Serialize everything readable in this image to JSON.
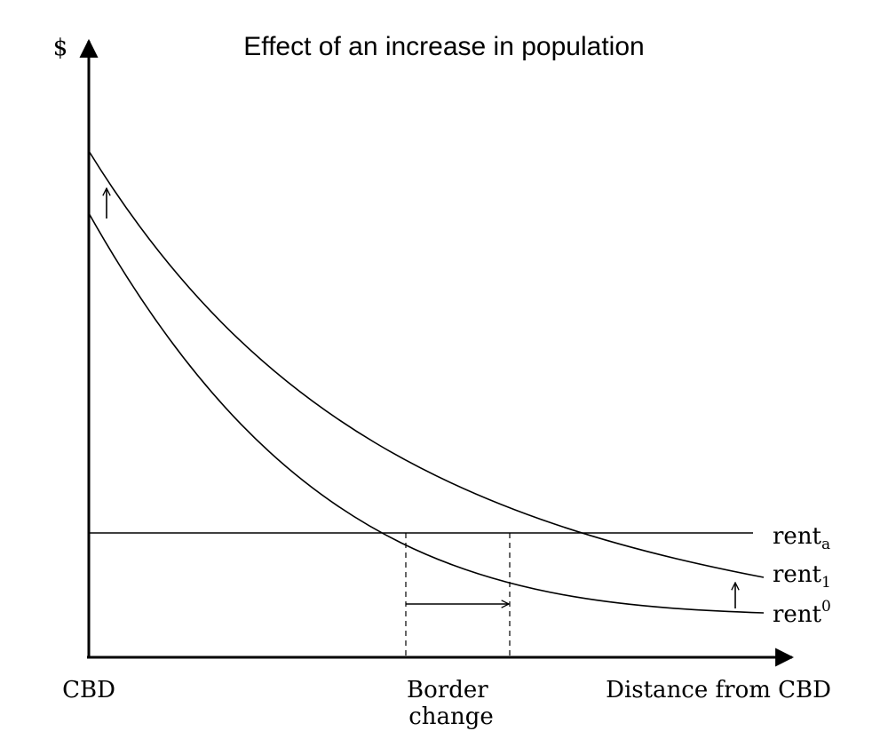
{
  "title": "Effect of an increase in population",
  "y_axis_label": "$",
  "x_axis_label": "Distance from CBD",
  "origin_label": "CBD",
  "border_label": [
    "Border",
    "change"
  ],
  "curves": {
    "rent_a": {
      "base": "rent",
      "sub": "a"
    },
    "rent_1": {
      "base": "rent",
      "sub": "1"
    },
    "rent_0": {
      "base": "rent",
      "sup": "0"
    }
  }
}
